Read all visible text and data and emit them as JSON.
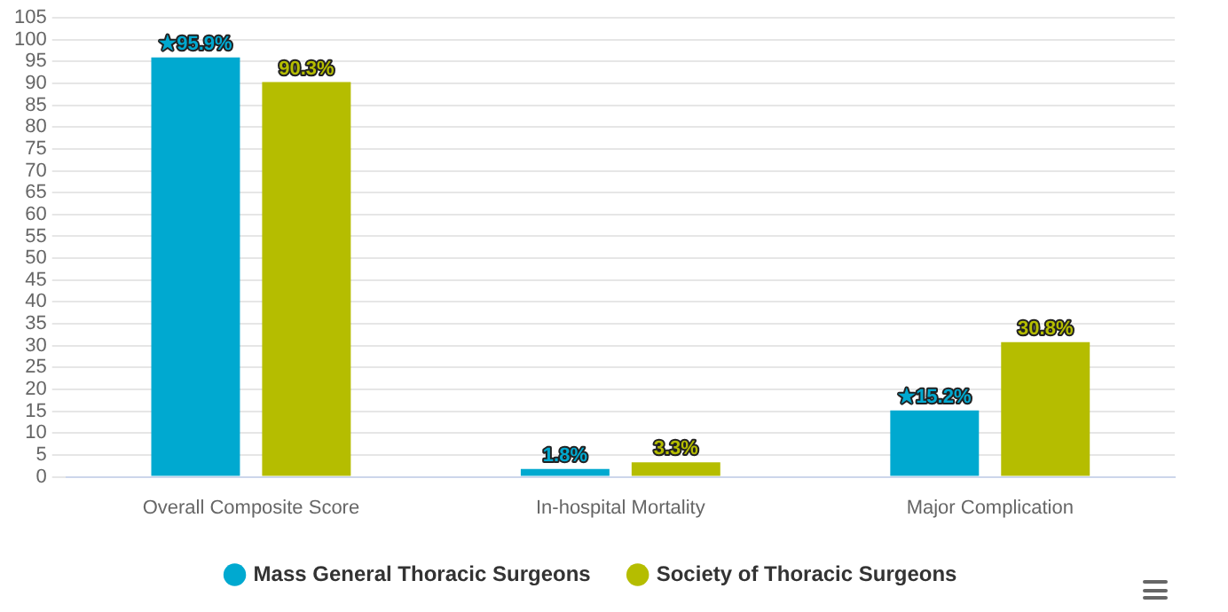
{
  "chart_data": {
    "type": "bar",
    "categories": [
      "Overall Composite Score",
      "In-hospital Mortality",
      "Major Complication"
    ],
    "series": [
      {
        "name": "Mass General Thoracic Surgeons",
        "color": "#00a9d0",
        "values": [
          95.9,
          1.8,
          15.2
        ],
        "value_labels": [
          "★95.9%",
          "1.8%",
          "★15.2%"
        ]
      },
      {
        "name": "Society of Thoracic Surgeons",
        "color": "#b5bd00",
        "values": [
          90.3,
          3.3,
          30.8
        ],
        "value_labels": [
          "90.3%",
          "3.3%",
          "30.8%"
        ]
      }
    ],
    "ylim": [
      0,
      105
    ],
    "yticks": [
      0,
      5,
      10,
      15,
      20,
      25,
      30,
      35,
      40,
      45,
      50,
      55,
      60,
      65,
      70,
      75,
      80,
      85,
      90,
      95,
      100,
      105
    ],
    "grid": "y",
    "legend": "bottom"
  }
}
